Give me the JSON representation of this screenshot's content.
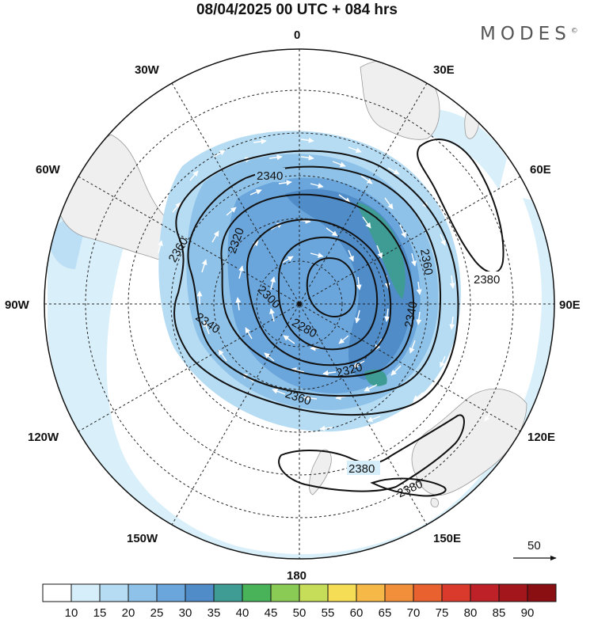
{
  "title": "08/04/2025  00 UTC  + 084 hrs",
  "brand": "MODES",
  "brand_mark": "©",
  "meridian_labels": {
    "m0": "0",
    "m30e": "30E",
    "m60e": "60E",
    "m90e": "90E",
    "m120e": "120E",
    "m150e": "150E",
    "m180": "180",
    "m150w": "150W",
    "m120w": "120W",
    "m90w": "90W",
    "m60w": "60W",
    "m30w": "30W"
  },
  "contour_labels": {
    "c2340a": "2340",
    "c2360a": "2360",
    "c2320a": "2320",
    "c2300": "2300",
    "c2280": "2280",
    "c2340b": "2340",
    "c2360b": "2360",
    "c2380a": "2380",
    "c2320b": "2320",
    "c2360c": "2360",
    "c2340c": "2340",
    "c2380b": "2380",
    "c2380c": "2380"
  },
  "vector_reference": "50",
  "colorbar": {
    "labels": [
      "10",
      "15",
      "20",
      "25",
      "30",
      "35",
      "40",
      "45",
      "50",
      "55",
      "60",
      "65",
      "70",
      "75",
      "80",
      "85",
      "90"
    ],
    "colors": [
      "#ffffff",
      "#d5eefa",
      "#b6dcf4",
      "#8fc2e8",
      "#6aa6dc",
      "#4f8cc8",
      "#3f9c95",
      "#49b35a",
      "#8acb55",
      "#c6dd5a",
      "#f5dd55",
      "#f6b847",
      "#f28f3b",
      "#e9612f",
      "#d93a2b",
      "#bf2128",
      "#a3161c",
      "#8a0f12"
    ]
  },
  "colors": {
    "land": "#efefef",
    "contour": "#111111",
    "arrow": "#ffffff"
  }
}
